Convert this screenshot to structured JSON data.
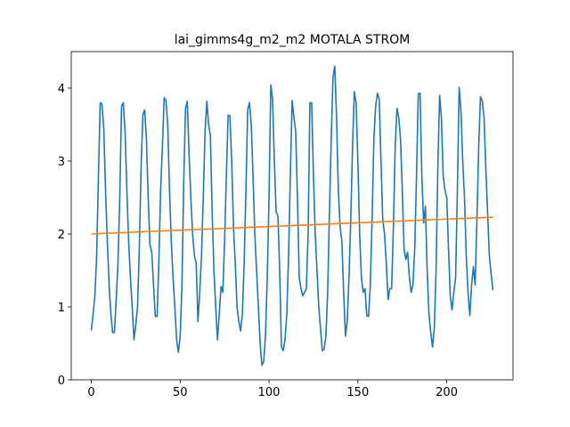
{
  "chart_data": {
    "type": "line",
    "title": "lai_gimms4g_m2_m2 MOTALA STROM",
    "xlim": [
      -11.3,
      237.3
    ],
    "xticks": [
      0,
      50,
      100,
      150,
      200
    ],
    "ylim": [
      0,
      4.5
    ],
    "yticks": [
      0,
      1,
      2,
      3,
      4
    ],
    "series": [
      {
        "color": "#1f77b4",
        "x": [
          0,
          1,
          2,
          3,
          4,
          5,
          6,
          7,
          8,
          9,
          10,
          11,
          12,
          13,
          14,
          15,
          16,
          17,
          18,
          19,
          20,
          21,
          22,
          23,
          24,
          25,
          26,
          27,
          28,
          29,
          30,
          31,
          32,
          33,
          34,
          35,
          36,
          37,
          38,
          39,
          40,
          41,
          42,
          43,
          44,
          45,
          46,
          47,
          48,
          49,
          50,
          51,
          52,
          53,
          54,
          55,
          56,
          57,
          58,
          59,
          60,
          61,
          62,
          63,
          64,
          65,
          66,
          67,
          68,
          69,
          70,
          71,
          72,
          73,
          74,
          75,
          76,
          77,
          78,
          79,
          80,
          81,
          82,
          83,
          84,
          85,
          86,
          87,
          88,
          89,
          90,
          91,
          92,
          93,
          94,
          95,
          96,
          97,
          98,
          99,
          100,
          101,
          102,
          103,
          104,
          105,
          106,
          107,
          108,
          109,
          110,
          111,
          112,
          113,
          114,
          115,
          116,
          117,
          118,
          119,
          120,
          121,
          122,
          123,
          124,
          125,
          126,
          127,
          128,
          129,
          130,
          131,
          132,
          133,
          134,
          135,
          136,
          137,
          138,
          139,
          140,
          141,
          142,
          143,
          144,
          145,
          146,
          147,
          148,
          149,
          150,
          151,
          152,
          153,
          154,
          155,
          156,
          157,
          158,
          159,
          160,
          161,
          162,
          163,
          164,
          165,
          166,
          167,
          168,
          169,
          170,
          171,
          172,
          173,
          174,
          175,
          176,
          177,
          178,
          179,
          180,
          181,
          182,
          183,
          184,
          185,
          186,
          187,
          188,
          189,
          190,
          191,
          192,
          193,
          194,
          195,
          196,
          197,
          198,
          199,
          200,
          201,
          202,
          203,
          204,
          205,
          206,
          207,
          208,
          209,
          210,
          211,
          212,
          213,
          214,
          215,
          216,
          217,
          218,
          219,
          220,
          221,
          222,
          223,
          224,
          225,
          226
        ],
        "values": [
          0.68,
          0.9,
          1.15,
          1.7,
          2.8,
          3.8,
          3.78,
          3.45,
          2.6,
          1.9,
          1.3,
          0.9,
          0.65,
          0.65,
          1.1,
          1.6,
          2.5,
          3.75,
          3.8,
          3.4,
          2.6,
          1.9,
          1.4,
          1.0,
          0.55,
          0.75,
          1.0,
          1.8,
          2.9,
          3.63,
          3.7,
          3.3,
          2.5,
          1.85,
          1.75,
          1.3,
          0.87,
          0.87,
          1.6,
          2.6,
          3.2,
          3.87,
          3.83,
          3.5,
          2.6,
          1.9,
          1.4,
          1.0,
          0.55,
          0.38,
          0.6,
          1.3,
          2.7,
          3.72,
          3.82,
          3.1,
          2.5,
          2.0,
          1.7,
          1.6,
          0.8,
          1.2,
          1.7,
          2.5,
          3.4,
          3.82,
          3.5,
          3.35,
          2.3,
          1.5,
          1.0,
          0.55,
          0.9,
          1.28,
          1.2,
          1.9,
          2.8,
          3.63,
          3.62,
          3.0,
          2.1,
          1.6,
          1.0,
          0.8,
          0.67,
          0.9,
          1.6,
          2.6,
          3.7,
          3.8,
          3.5,
          2.8,
          2.0,
          1.5,
          1.0,
          0.5,
          0.2,
          0.25,
          0.6,
          1.4,
          2.5,
          4.04,
          3.85,
          3.0,
          2.3,
          2.25,
          1.5,
          0.45,
          0.4,
          0.55,
          0.9,
          1.7,
          2.8,
          3.83,
          3.6,
          3.4,
          2.5,
          1.4,
          1.25,
          1.15,
          1.2,
          1.25,
          2.0,
          3.8,
          3.8,
          2.8,
          2.0,
          1.5,
          1.0,
          0.7,
          0.4,
          0.42,
          0.6,
          1.2,
          2.3,
          3.3,
          4.15,
          4.3,
          3.6,
          2.6,
          2.1,
          1.9,
          1.2,
          0.6,
          0.8,
          1.4,
          2.2,
          3.2,
          3.95,
          3.8,
          3.0,
          2.0,
          1.4,
          1.2,
          1.25,
          0.88,
          0.87,
          1.3,
          2.2,
          3.3,
          3.75,
          3.93,
          3.85,
          3.0,
          2.2,
          2.0,
          1.6,
          1.1,
          1.25,
          1.25,
          2.1,
          3.2,
          3.72,
          3.6,
          3.3,
          2.6,
          1.8,
          1.65,
          1.75,
          1.4,
          1.2,
          1.3,
          1.8,
          2.8,
          3.92,
          3.93,
          2.8,
          2.15,
          2.38,
          1.5,
          0.9,
          0.65,
          0.45,
          0.7,
          1.5,
          2.9,
          3.9,
          3.6,
          2.8,
          2.6,
          2.5,
          1.8,
          1.15,
          0.96,
          1.2,
          1.4,
          2.6,
          4.01,
          3.7,
          3.0,
          2.5,
          1.7,
          1.2,
          0.88,
          1.3,
          1.55,
          1.3,
          2.2,
          3.2,
          3.88,
          3.82,
          3.6,
          2.9,
          2.3,
          1.7,
          1.45,
          1.23
        ]
      },
      {
        "color": "#ff7f0e",
        "x": [
          0,
          226
        ],
        "values": [
          2.0,
          2.23
        ]
      }
    ]
  }
}
